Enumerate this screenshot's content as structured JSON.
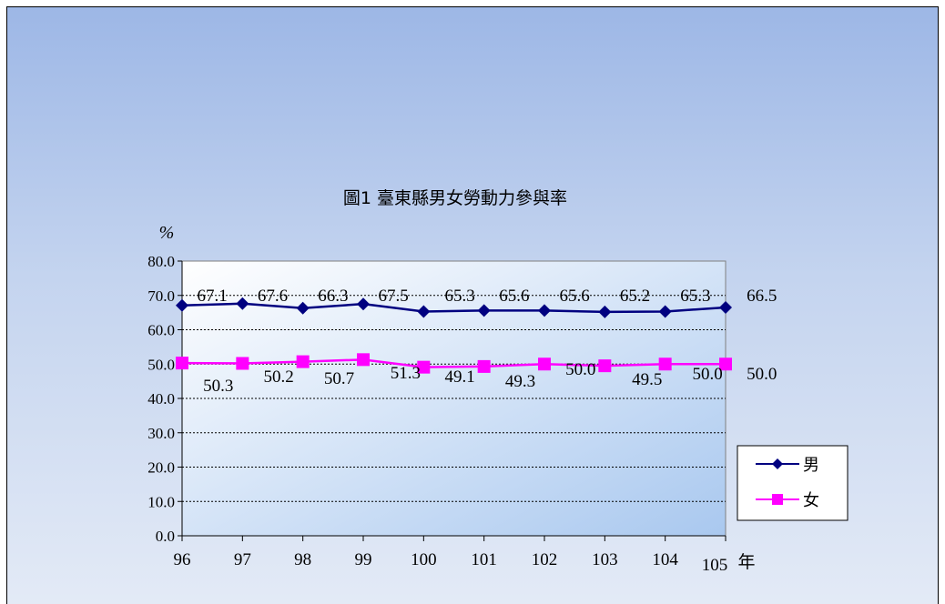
{
  "chart_data": {
    "type": "line",
    "title": "圖1 臺東縣男女勞動力參與率",
    "ylabel": "%",
    "xlabel": "年",
    "categories": [
      "96",
      "97",
      "98",
      "99",
      "100",
      "101",
      "102",
      "103",
      "104",
      "105"
    ],
    "ylim": [
      0,
      80
    ],
    "yticks": [
      "0.0",
      "10.0",
      "20.0",
      "30.0",
      "40.0",
      "50.0",
      "60.0",
      "70.0",
      "80.0"
    ],
    "grid": true,
    "legend_position": "right",
    "series": [
      {
        "name": "男",
        "color": "#000080",
        "marker": "diamond",
        "values": [
          67.1,
          67.6,
          66.3,
          67.5,
          65.3,
          65.6,
          65.6,
          65.2,
          65.3,
          66.5
        ],
        "labels": [
          "67.1",
          "67.6",
          "66.3",
          "67.5",
          "65.3",
          "65.6",
          "65.6",
          "65.2",
          "65.3",
          "66.5"
        ]
      },
      {
        "name": "女",
        "color": "#ff00ff",
        "marker": "square",
        "values": [
          50.3,
          50.2,
          50.7,
          51.3,
          49.1,
          49.3,
          50.0,
          49.5,
          50.0,
          50.0
        ],
        "labels": [
          "50.3",
          "50.2",
          "50.7",
          "51.3",
          "49.1",
          "49.3",
          "50.0",
          "49.5",
          "50.0",
          "50.0"
        ]
      }
    ]
  }
}
